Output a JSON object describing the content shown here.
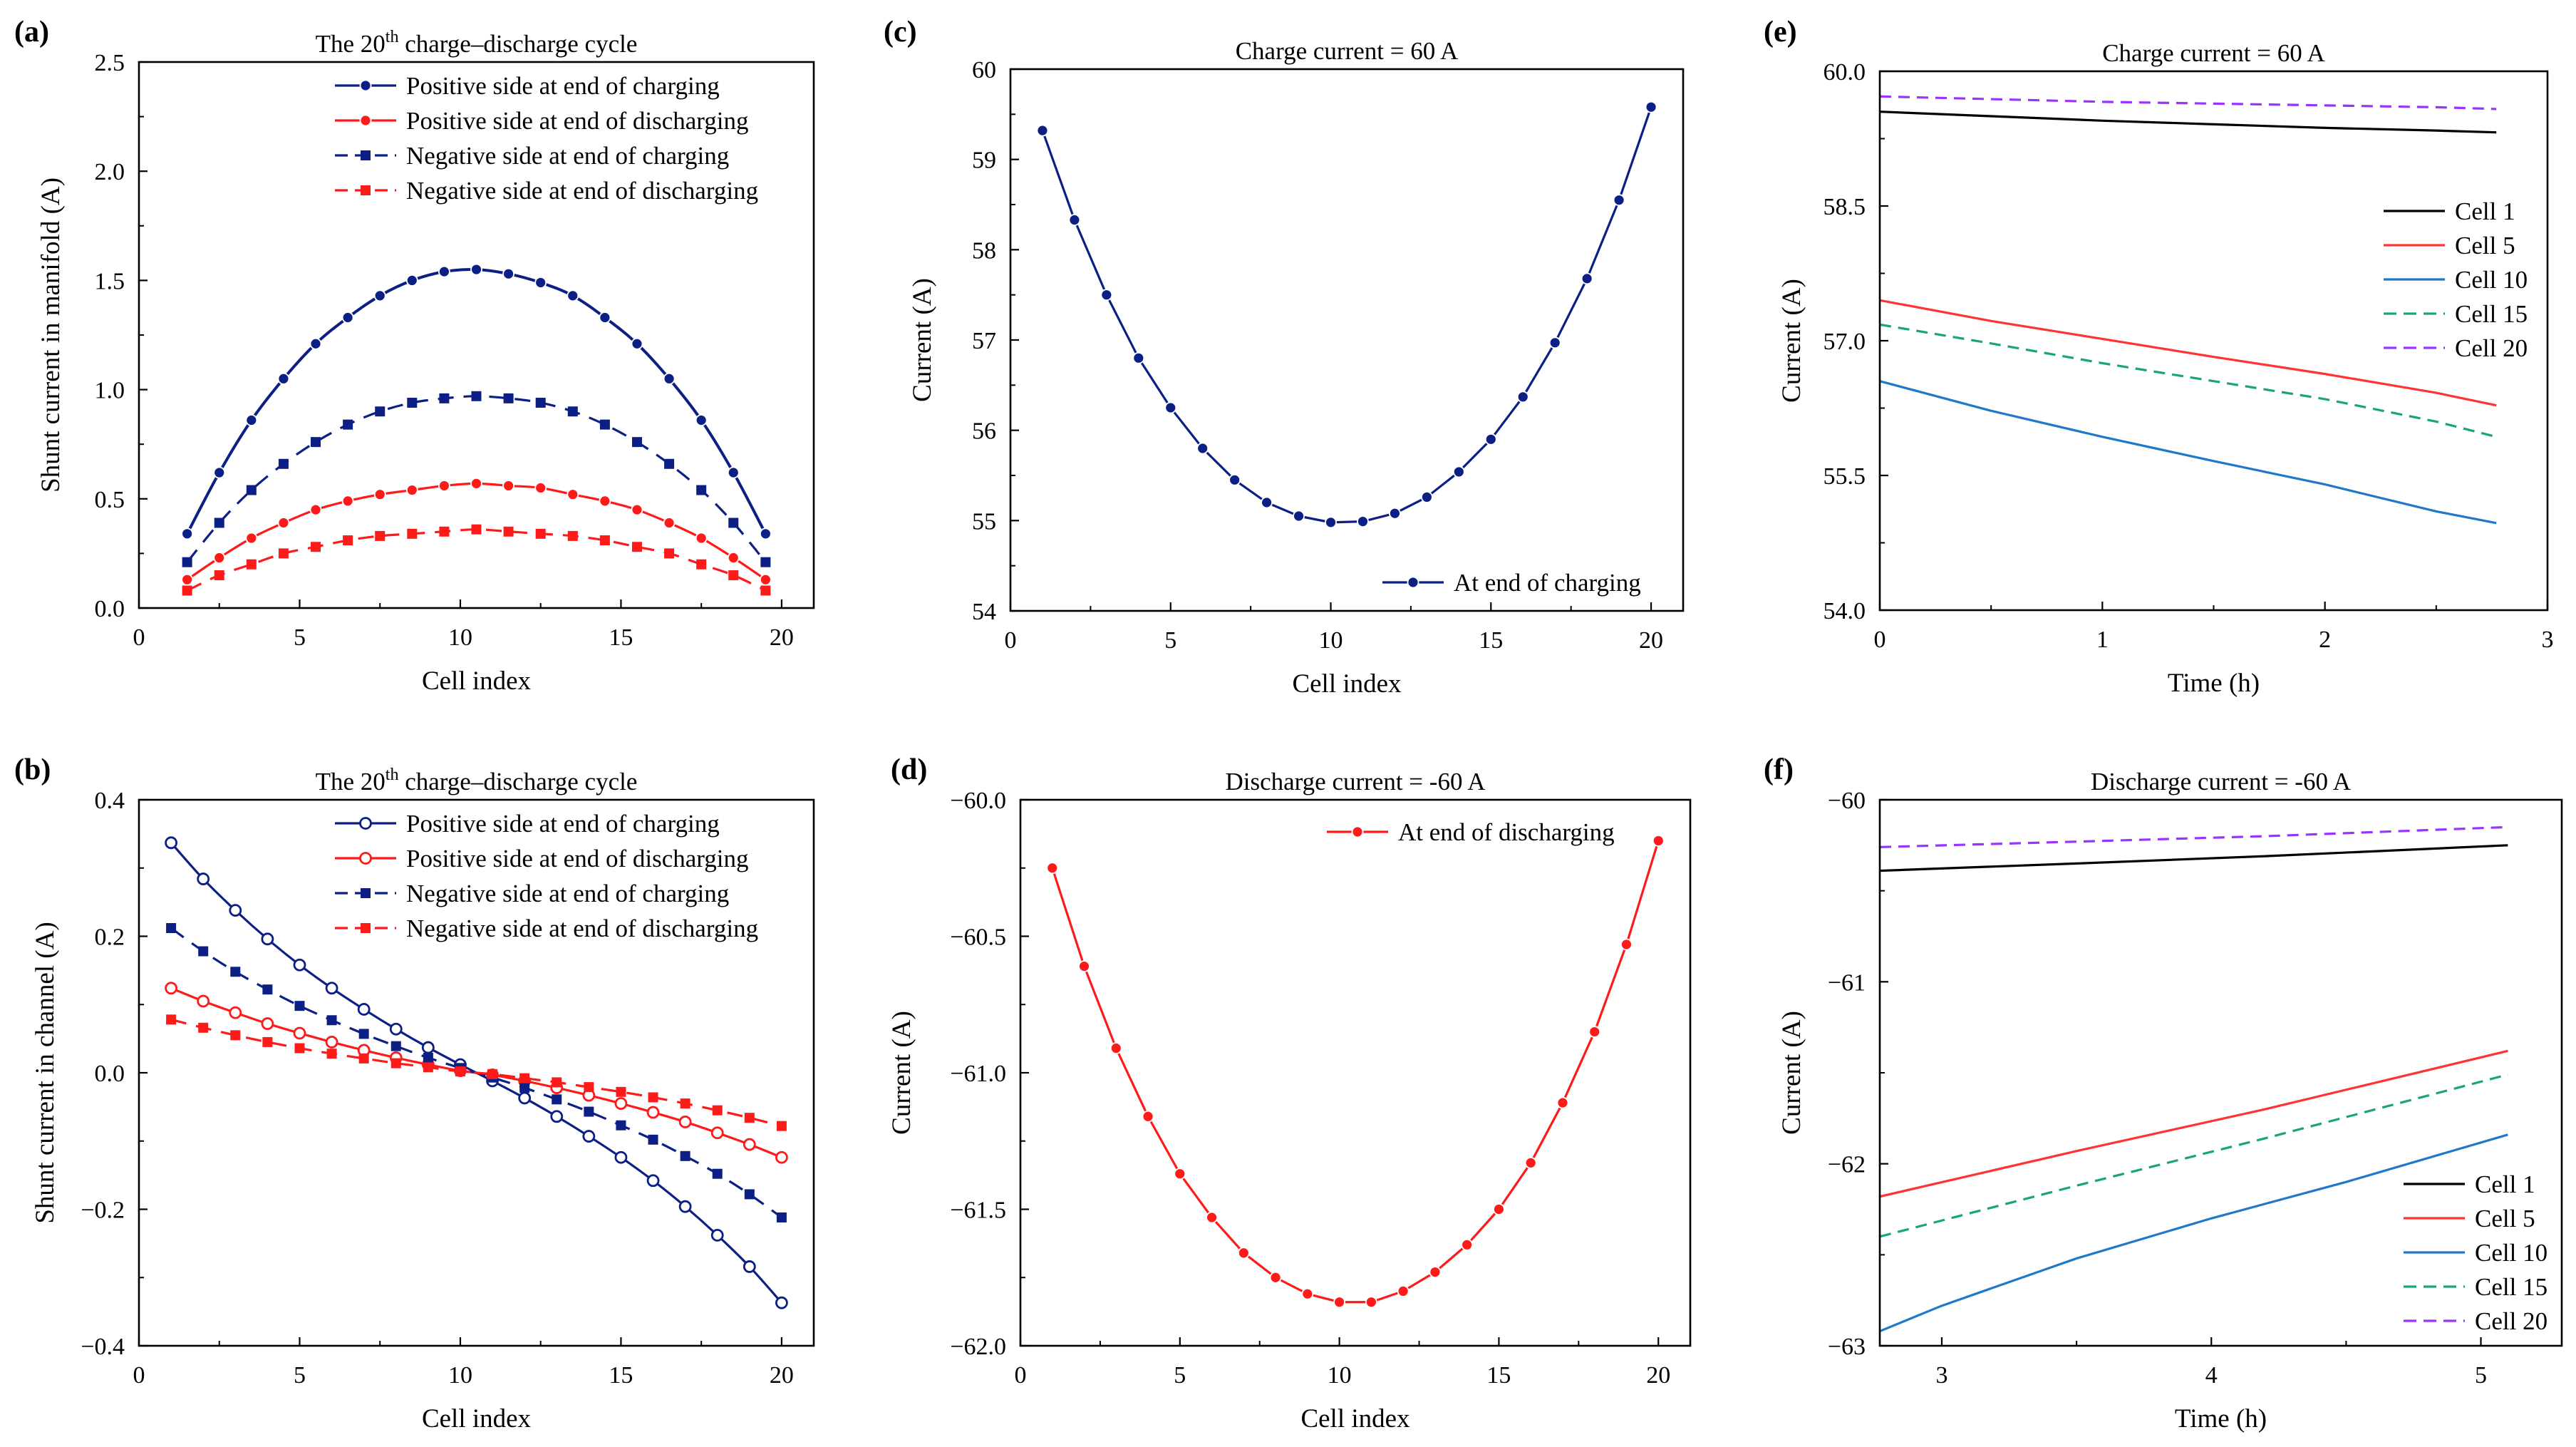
{
  "chart_data": [
    {
      "panel": "(a)",
      "type": "line",
      "title_main": "The 20",
      "title_sup": "th",
      "title_rest": " charge–discharge cycle",
      "xlabel": "Cell index",
      "ylabel": "Shunt current in manifold (A)",
      "xlim": [
        0,
        21
      ],
      "ylim": [
        0,
        2.5
      ],
      "xticks": [
        0,
        5,
        10,
        15,
        20
      ],
      "xtick_labels": [
        "0",
        "5",
        "10",
        "15",
        "20"
      ],
      "yticks": [
        0,
        0.5,
        1,
        1.5,
        2,
        2.5
      ],
      "ytick_labels": [
        "0.0",
        "0.5",
        "1.0",
        "1.5",
        "2.0",
        "2.5"
      ],
      "legend_position": "top-right",
      "series": [
        {
          "name": "Positive side at end of charging",
          "color": "#0c1f84",
          "dash": "solid",
          "marker": "circle",
          "smooth": true,
          "x": [
            1.5,
            2.5,
            3.5,
            4.5,
            5.5,
            6.5,
            7.5,
            8.5,
            9.5,
            10.5,
            11.5,
            12.5,
            13.5,
            14.5,
            15.5,
            16.5,
            17.5,
            18.5,
            19.5
          ],
          "y": [
            0.34,
            0.62,
            0.86,
            1.05,
            1.21,
            1.33,
            1.43,
            1.5,
            1.54,
            1.55,
            1.53,
            1.49,
            1.43,
            1.33,
            1.21,
            1.05,
            0.86,
            0.62,
            0.34
          ]
        },
        {
          "name": "Positive side at end of discharging",
          "color": "#ff1a1a",
          "dash": "solid",
          "marker": "circle",
          "smooth": true,
          "x": [
            1.5,
            2.5,
            3.5,
            4.5,
            5.5,
            6.5,
            7.5,
            8.5,
            9.5,
            10.5,
            11.5,
            12.5,
            13.5,
            14.5,
            15.5,
            16.5,
            17.5,
            18.5,
            19.5
          ],
          "y": [
            0.13,
            0.23,
            0.32,
            0.39,
            0.45,
            0.49,
            0.52,
            0.54,
            0.56,
            0.57,
            0.56,
            0.55,
            0.52,
            0.49,
            0.45,
            0.39,
            0.32,
            0.23,
            0.13
          ]
        },
        {
          "name": "Negative side at end of charging",
          "color": "#0c1f84",
          "dash": "dashed",
          "marker": "square",
          "smooth": true,
          "x": [
            1.5,
            2.5,
            3.5,
            4.5,
            5.5,
            6.5,
            7.5,
            8.5,
            9.5,
            10.5,
            11.5,
            12.5,
            13.5,
            14.5,
            15.5,
            16.5,
            17.5,
            18.5,
            19.5
          ],
          "y": [
            0.21,
            0.39,
            0.54,
            0.66,
            0.76,
            0.84,
            0.9,
            0.94,
            0.96,
            0.97,
            0.96,
            0.94,
            0.9,
            0.84,
            0.76,
            0.66,
            0.54,
            0.39,
            0.21
          ]
        },
        {
          "name": "Negative side at end of discharging",
          "color": "#ff1a1a",
          "dash": "dashed",
          "marker": "square",
          "smooth": true,
          "x": [
            1.5,
            2.5,
            3.5,
            4.5,
            5.5,
            6.5,
            7.5,
            8.5,
            9.5,
            10.5,
            11.5,
            12.5,
            13.5,
            14.5,
            15.5,
            16.5,
            17.5,
            18.5,
            19.5
          ],
          "y": [
            0.08,
            0.15,
            0.2,
            0.25,
            0.28,
            0.31,
            0.33,
            0.34,
            0.35,
            0.36,
            0.35,
            0.34,
            0.33,
            0.31,
            0.28,
            0.25,
            0.2,
            0.15,
            0.08
          ]
        }
      ]
    },
    {
      "panel": "(b)",
      "type": "line",
      "title_main": "The 20",
      "title_sup": "th",
      "title_rest": " charge–discharge cycle",
      "xlabel": "Cell index",
      "ylabel": "Shunt current in channel (A)",
      "xlim": [
        0,
        21
      ],
      "ylim": [
        -0.4,
        0.4
      ],
      "xticks": [
        0,
        5,
        10,
        15,
        20
      ],
      "xtick_labels": [
        "0",
        "5",
        "10",
        "15",
        "20"
      ],
      "yticks": [
        -0.4,
        -0.2,
        0,
        0.2,
        0.4
      ],
      "ytick_labels": [
        "−0.4",
        "−0.2",
        "0.0",
        "0.2",
        "0.4"
      ],
      "legend_position": "top-right",
      "series": [
        {
          "name": "Positive side at end of charging",
          "color": "#0c1f84",
          "dash": "solid",
          "marker": "circle-open",
          "smooth": true,
          "x": [
            1,
            2,
            3,
            4,
            5,
            6,
            7,
            8,
            9,
            10,
            11,
            12,
            13,
            14,
            15,
            16,
            17,
            18,
            19,
            20
          ],
          "y": [
            0.337,
            0.284,
            0.238,
            0.196,
            0.158,
            0.124,
            0.093,
            0.064,
            0.037,
            0.012,
            -0.012,
            -0.037,
            -0.064,
            -0.093,
            -0.124,
            -0.158,
            -0.196,
            -0.238,
            -0.284,
            -0.337
          ]
        },
        {
          "name": "Positive side at end of discharging",
          "color": "#ff1a1a",
          "dash": "solid",
          "marker": "circle-open",
          "smooth": true,
          "x": [
            1,
            2,
            3,
            4,
            5,
            6,
            7,
            8,
            9,
            10,
            11,
            12,
            13,
            14,
            15,
            16,
            17,
            18,
            19,
            20
          ],
          "y": [
            0.124,
            0.105,
            0.088,
            0.072,
            0.058,
            0.045,
            0.033,
            0.022,
            0.012,
            0.003,
            -0.003,
            -0.012,
            -0.022,
            -0.033,
            -0.045,
            -0.058,
            -0.072,
            -0.088,
            -0.105,
            -0.124
          ]
        },
        {
          "name": "Negative side at end of charging",
          "color": "#0c1f84",
          "dash": "dashed",
          "marker": "square",
          "smooth": true,
          "x": [
            1,
            2,
            3,
            4,
            5,
            6,
            7,
            8,
            9,
            10,
            11,
            12,
            13,
            14,
            15,
            16,
            17,
            18,
            19,
            20
          ],
          "y": [
            0.212,
            0.178,
            0.148,
            0.122,
            0.098,
            0.077,
            0.057,
            0.039,
            0.022,
            0.007,
            -0.007,
            -0.022,
            -0.039,
            -0.057,
            -0.077,
            -0.098,
            -0.122,
            -0.148,
            -0.178,
            -0.212
          ]
        },
        {
          "name": "Negative side at end of discharging",
          "color": "#ff1a1a",
          "dash": "dashed",
          "marker": "square",
          "smooth": true,
          "x": [
            1,
            2,
            3,
            4,
            5,
            6,
            7,
            8,
            9,
            10,
            11,
            12,
            13,
            14,
            15,
            16,
            17,
            18,
            19,
            20
          ],
          "y": [
            0.078,
            0.066,
            0.055,
            0.045,
            0.036,
            0.028,
            0.021,
            0.014,
            0.008,
            0.002,
            -0.002,
            -0.008,
            -0.014,
            -0.021,
            -0.028,
            -0.036,
            -0.045,
            -0.055,
            -0.066,
            -0.078
          ]
        }
      ]
    },
    {
      "panel": "(c)",
      "type": "line",
      "title_main": "Charge current = 60 A",
      "xlabel": "Cell index",
      "ylabel": "Current (A)",
      "xlim": [
        0,
        21
      ],
      "ylim": [
        54,
        60
      ],
      "xticks": [
        0,
        5,
        10,
        15,
        20
      ],
      "xtick_labels": [
        "0",
        "5",
        "10",
        "15",
        "20"
      ],
      "yticks": [
        54,
        55,
        56,
        57,
        58,
        59,
        60
      ],
      "ytick_labels": [
        "54",
        "55",
        "56",
        "57",
        "58",
        "59",
        "60"
      ],
      "legend_position": "bottom-right",
      "series": [
        {
          "name": "At end of charging",
          "color": "#0c1f84",
          "dash": "solid",
          "marker": "circle",
          "smooth": false,
          "x": [
            1,
            2,
            3,
            4,
            5,
            6,
            7,
            8,
            9,
            10,
            11,
            12,
            13,
            14,
            15,
            16,
            17,
            18,
            19,
            20
          ],
          "y": [
            59.32,
            58.33,
            57.5,
            56.8,
            56.25,
            55.8,
            55.45,
            55.2,
            55.05,
            54.98,
            54.99,
            55.08,
            55.26,
            55.54,
            55.9,
            56.37,
            56.97,
            57.68,
            58.55,
            59.58
          ]
        }
      ]
    },
    {
      "panel": "(d)",
      "type": "line",
      "title_main": "Discharge current = -60 A",
      "xlabel": "Cell index",
      "ylabel": "Current (A)",
      "xlim": [
        0,
        21
      ],
      "ylim": [
        -62,
        -60
      ],
      "xticks": [
        0,
        5,
        10,
        15,
        20
      ],
      "xtick_labels": [
        "0",
        "5",
        "10",
        "15",
        "20"
      ],
      "yticks": [
        -62,
        -61.5,
        -61,
        -60.5,
        -60
      ],
      "ytick_labels": [
        "−62.0",
        "−61.5",
        "−61.0",
        "−60.5",
        "−60.0"
      ],
      "legend_position": "top-right",
      "series": [
        {
          "name": "At end of discharging",
          "color": "#ff1a1a",
          "dash": "solid",
          "marker": "circle",
          "smooth": false,
          "x": [
            1,
            2,
            3,
            4,
            5,
            6,
            7,
            8,
            9,
            10,
            11,
            12,
            13,
            14,
            15,
            16,
            17,
            18,
            19,
            20
          ],
          "y": [
            -60.25,
            -60.61,
            -60.91,
            -61.16,
            -61.37,
            -61.53,
            -61.66,
            -61.75,
            -61.81,
            -61.84,
            -61.84,
            -61.8,
            -61.73,
            -61.63,
            -61.5,
            -61.33,
            -61.11,
            -60.85,
            -60.53,
            -60.15
          ]
        }
      ]
    },
    {
      "panel": "(e)",
      "type": "line",
      "title_main": "Charge current = 60 A",
      "xlabel": "Time (h)",
      "ylabel": "Current (A)",
      "xlim": [
        0,
        3
      ],
      "ylim": [
        54,
        60
      ],
      "xticks": [
        0,
        1,
        2,
        3
      ],
      "xtick_labels": [
        "0",
        "1",
        "2",
        "3"
      ],
      "yticks": [
        54,
        55.5,
        57,
        58.5,
        60
      ],
      "ytick_labels": [
        "54.0",
        "55.5",
        "57.0",
        "58.5",
        "60.0"
      ],
      "legend_position": "right",
      "series": [
        {
          "name": "Cell 1",
          "color": "#000000",
          "dash": "solid",
          "x": [
            0,
            0.5,
            1,
            1.5,
            2,
            2.5,
            2.77
          ],
          "y": [
            59.55,
            59.5,
            59.45,
            59.41,
            59.37,
            59.34,
            59.32
          ]
        },
        {
          "name": "Cell 5",
          "color": "#ff3333",
          "dash": "solid",
          "x": [
            0,
            0.5,
            1,
            1.5,
            2,
            2.5,
            2.77
          ],
          "y": [
            57.45,
            57.22,
            57.02,
            56.82,
            56.63,
            56.42,
            56.28
          ]
        },
        {
          "name": "Cell 10",
          "color": "#1f78c8",
          "dash": "solid",
          "x": [
            0,
            0.5,
            1,
            1.5,
            2,
            2.5,
            2.77
          ],
          "y": [
            56.55,
            56.22,
            55.93,
            55.66,
            55.4,
            55.1,
            54.97
          ]
        },
        {
          "name": "Cell 15",
          "color": "#1aa672",
          "dash": "dashed",
          "x": [
            0,
            0.5,
            1,
            1.5,
            2,
            2.5,
            2.77
          ],
          "y": [
            57.18,
            56.97,
            56.75,
            56.55,
            56.35,
            56.1,
            55.93
          ]
        },
        {
          "name": "Cell 20",
          "color": "#9933ff",
          "dash": "dashed",
          "x": [
            0,
            0.5,
            1,
            1.5,
            2,
            2.5,
            2.77
          ],
          "y": [
            59.72,
            59.69,
            59.66,
            59.64,
            59.62,
            59.6,
            59.58
          ]
        }
      ]
    },
    {
      "panel": "(f)",
      "type": "line",
      "title_main": "Discharge current = -60 A",
      "xlabel": "Time (h)",
      "ylabel": "Current (A)",
      "xlim": [
        2.77,
        5.3
      ],
      "ylim": [
        -63,
        -60
      ],
      "xticks": [
        3,
        4,
        5
      ],
      "xtick_labels": [
        "3",
        "4",
        "5"
      ],
      "yticks": [
        -63,
        -62,
        -61,
        -60
      ],
      "ytick_labels": [
        "−63",
        "−62",
        "−61",
        "−60"
      ],
      "legend_position": "bottom-right",
      "series": [
        {
          "name": "Cell 1",
          "color": "#000000",
          "dash": "solid",
          "x": [
            2.77,
            3.5,
            4.2,
            5.1
          ],
          "y": [
            -60.39,
            -60.35,
            -60.31,
            -60.25
          ]
        },
        {
          "name": "Cell 5",
          "color": "#ff3333",
          "dash": "solid",
          "x": [
            2.77,
            3.5,
            4.2,
            5.1
          ],
          "y": [
            -62.18,
            -61.93,
            -61.7,
            -61.38
          ]
        },
        {
          "name": "Cell 10",
          "color": "#1f78c8",
          "dash": "solid",
          "x": [
            2.77,
            3.0,
            3.5,
            4.0,
            4.5,
            5.1
          ],
          "y": [
            -62.92,
            -62.78,
            -62.52,
            -62.3,
            -62.1,
            -61.84
          ]
        },
        {
          "name": "Cell 15",
          "color": "#1aa672",
          "dash": "dashed",
          "x": [
            2.77,
            3.5,
            4.2,
            5.1
          ],
          "y": [
            -62.4,
            -62.12,
            -61.86,
            -61.51
          ]
        },
        {
          "name": "Cell 20",
          "color": "#9933ff",
          "dash": "dashed",
          "x": [
            2.77,
            3.5,
            4.2,
            5.1
          ],
          "y": [
            -60.26,
            -60.23,
            -60.2,
            -60.15
          ]
        }
      ]
    }
  ]
}
